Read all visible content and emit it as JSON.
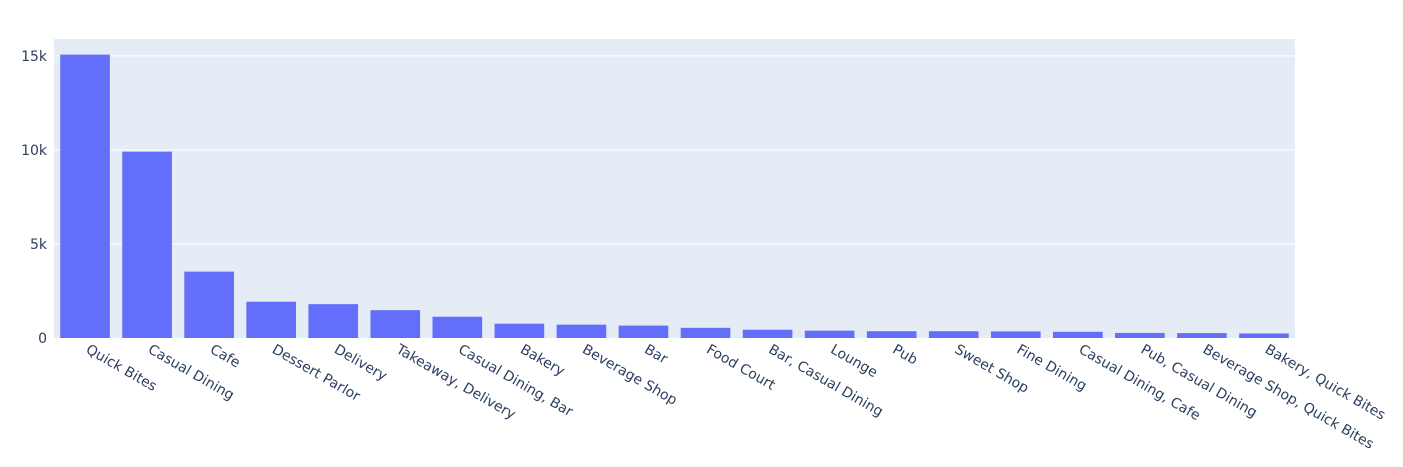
{
  "chart_data": {
    "type": "bar",
    "title": "",
    "xlabel": "",
    "ylabel": "",
    "categories": [
      "Quick Bites",
      "Casual Dining",
      "Cafe",
      "Dessert Parlor",
      "Delivery",
      "Takeaway, Delivery",
      "Casual Dining, Bar",
      "Bakery",
      "Beverage Shop",
      "Bar",
      "Food Court",
      "Bar, Casual Dining",
      "Lounge",
      "Pub",
      "Sweet Shop",
      "Fine Dining",
      "Casual Dining, Cafe",
      "Pub, Casual Dining",
      "Beverage Shop, Quick Bites",
      "Bakery, Quick Bites"
    ],
    "values": [
      15070,
      9910,
      3530,
      1930,
      1800,
      1480,
      1130,
      760,
      710,
      660,
      540,
      440,
      390,
      360,
      360,
      350,
      330,
      270,
      260,
      240
    ],
    "ylim": [
      0,
      15900
    ],
    "yticks": [
      0,
      5000,
      10000,
      15000
    ],
    "ytick_labels": [
      "0",
      "5k",
      "10k",
      "15k"
    ],
    "grid": true,
    "legend": "none",
    "colors": {
      "bar": "#636efa",
      "plot_bg": "#e5ecf6",
      "grid": "#ffffff",
      "text": "#2a3f5f"
    }
  }
}
